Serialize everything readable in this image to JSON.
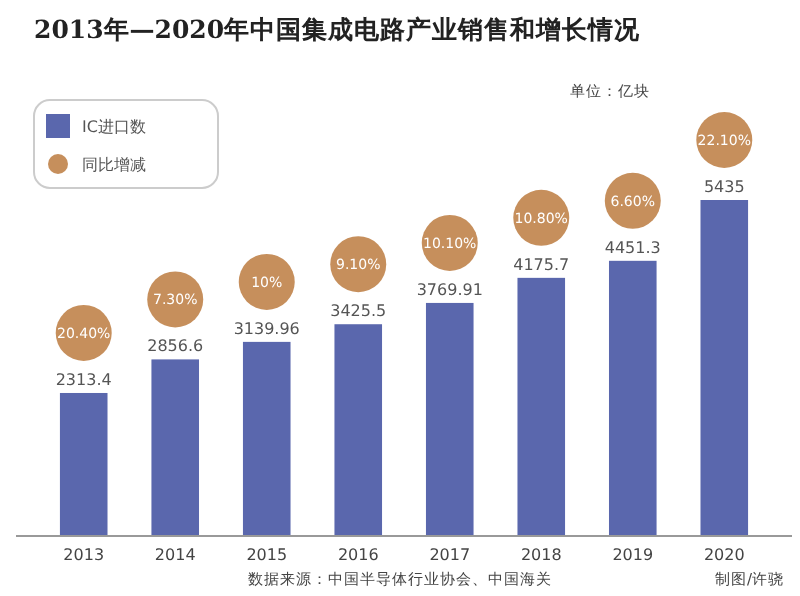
{
  "chart_data": {
    "type": "bar",
    "title": "2013年—2020年中国集成电路产业销售和增长情况",
    "categories": [
      "2013",
      "2014",
      "2015",
      "2016",
      "2017",
      "2018",
      "2019",
      "2020"
    ],
    "series": [
      {
        "name": "IC进口数",
        "color": "#5a67ad",
        "values": [
          2313.4,
          2856.6,
          3139.96,
          3425.5,
          3769.91,
          4175.7,
          4451.3,
          5435
        ]
      }
    ],
    "data_labels": true,
    "legend": "top left",
    "grid": false,
    "legend_title": "同比增减",
    "annotations": [
      "单位：亿块",
      "数据来源：中国半导体行业协会、中国海关",
      "制图/许骁",
      "20.40%",
      "7.30%",
      "10%",
      "9.10%",
      "10.10%",
      "10.80%",
      "6.60%",
      "22.10%"
    ]
  }
}
